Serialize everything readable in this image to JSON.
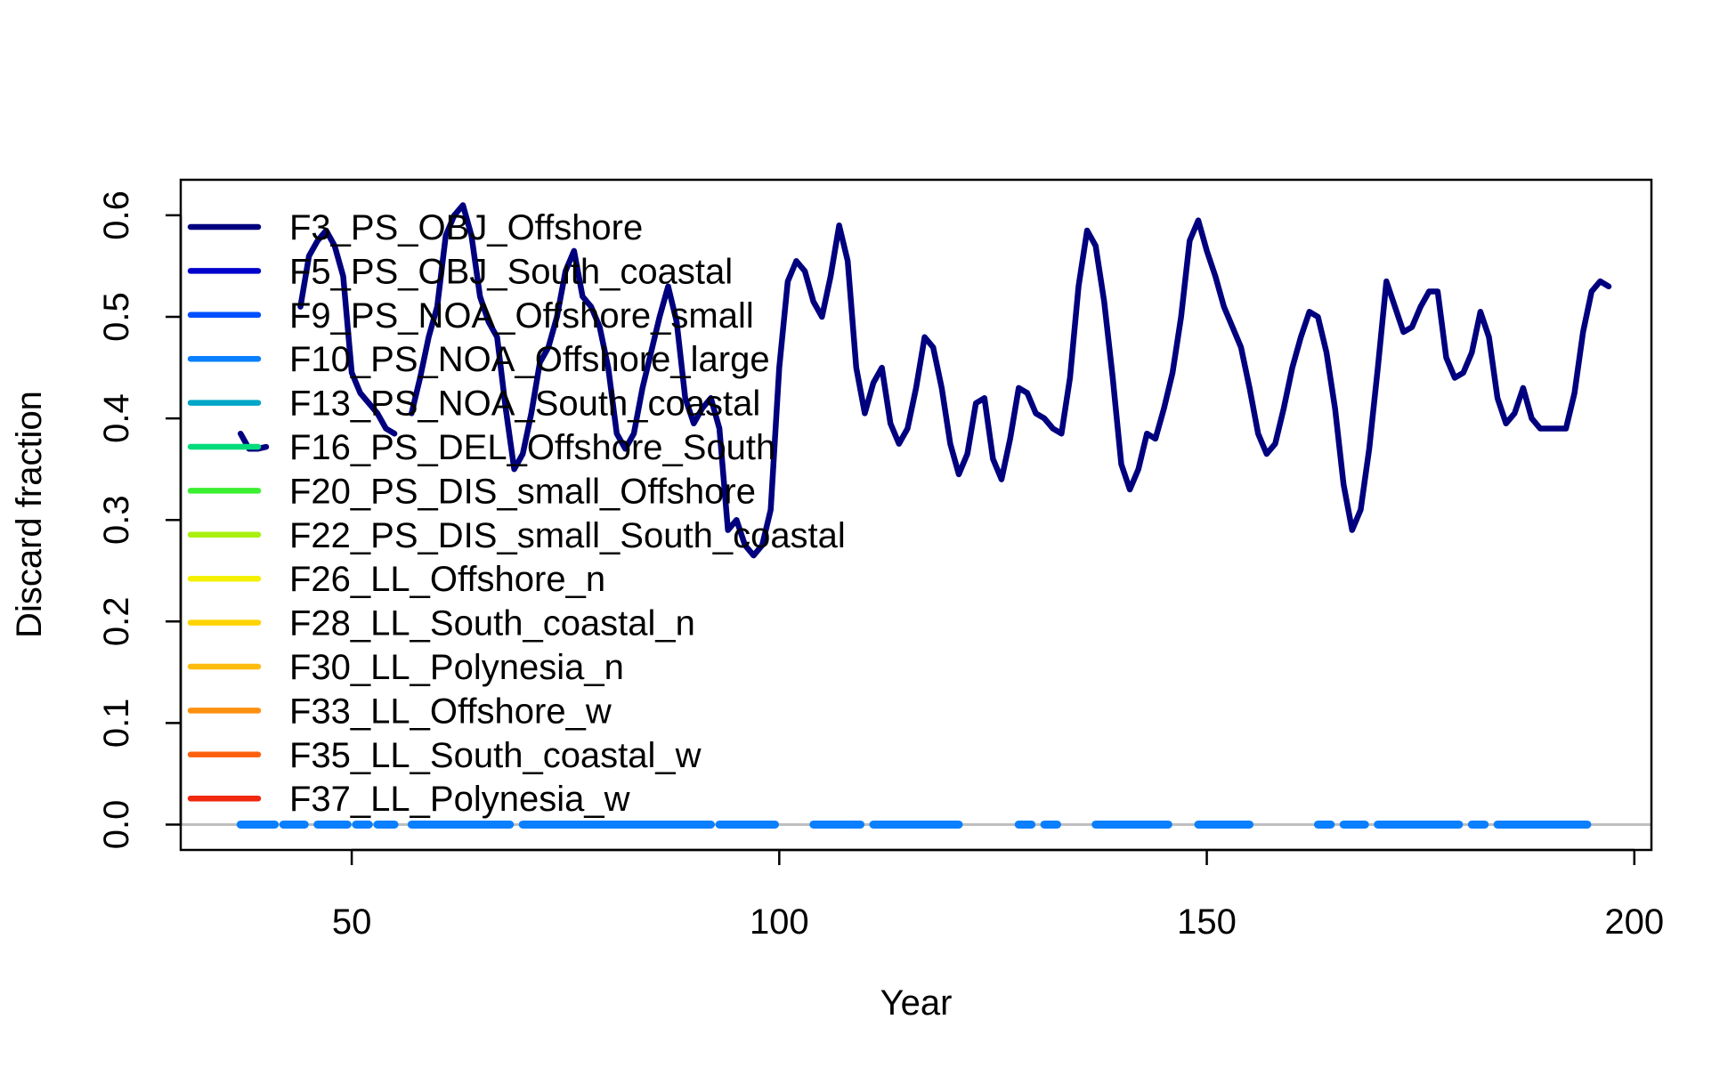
{
  "chart_data": {
    "type": "line",
    "title": "",
    "xlabel": "Year",
    "ylabel": "Discard fraction",
    "xlim": [
      30,
      202
    ],
    "ylim": [
      -0.025,
      0.635
    ],
    "x_ticks": [
      50,
      100,
      150,
      200
    ],
    "y_ticks": [
      0.0,
      0.1,
      0.2,
      0.3,
      0.4,
      0.5,
      0.6
    ],
    "x_tick_labels": [
      "50",
      "100",
      "150",
      "200"
    ],
    "y_tick_labels": [
      "0.0",
      "0.1",
      "0.2",
      "0.3",
      "0.4",
      "0.5",
      "0.6"
    ],
    "grid": false,
    "legend_position": "top-left",
    "reference_line": {
      "y": 0,
      "color": "#bebebe"
    },
    "series": [
      {
        "name": "F3_PS_OBJ_Offshore",
        "color": "#00007f",
        "style": "solid",
        "x": [
          37,
          38,
          39,
          40,
          44,
          45,
          46,
          47,
          48,
          49,
          50,
          51,
          52,
          53,
          54,
          55,
          57,
          58,
          59,
          60,
          61,
          62,
          63,
          64,
          65,
          66,
          67,
          68,
          69,
          70,
          71,
          72,
          73,
          74,
          75,
          76,
          77,
          78,
          79,
          80,
          81,
          82,
          83,
          84,
          85,
          86,
          87,
          88,
          89,
          90,
          91,
          92,
          93,
          94,
          95,
          96,
          97,
          98,
          99,
          100,
          101,
          102,
          103,
          104,
          105,
          106,
          107,
          108,
          109,
          110,
          111,
          112,
          113,
          114,
          115,
          116,
          117,
          118,
          119,
          120,
          121,
          122,
          123,
          124,
          125,
          126,
          127,
          128,
          129,
          130,
          131,
          132,
          133,
          134,
          135,
          136,
          137,
          138,
          139,
          140,
          141,
          142,
          143,
          144,
          145,
          146,
          147,
          148,
          149,
          150,
          151,
          152,
          153,
          154,
          155,
          156,
          157,
          158,
          159,
          160,
          161,
          162,
          163,
          164,
          165,
          166,
          167,
          168,
          169,
          170,
          171,
          172,
          173,
          174,
          175,
          176,
          177,
          178,
          179,
          180,
          181,
          182,
          183,
          184,
          185,
          186,
          187,
          188,
          189,
          190,
          191,
          192,
          193,
          194,
          195,
          196,
          197
        ],
        "y": [
          0.385,
          0.37,
          0.37,
          0.372,
          0.51,
          0.56,
          0.575,
          0.585,
          0.57,
          0.54,
          0.445,
          0.425,
          0.415,
          0.405,
          0.39,
          0.385,
          0.405,
          0.44,
          0.48,
          0.51,
          0.58,
          0.6,
          0.61,
          0.58,
          0.52,
          0.495,
          0.48,
          0.41,
          0.35,
          0.365,
          0.405,
          0.455,
          0.47,
          0.5,
          0.545,
          0.565,
          0.52,
          0.51,
          0.49,
          0.45,
          0.385,
          0.37,
          0.385,
          0.43,
          0.465,
          0.5,
          0.53,
          0.495,
          0.42,
          0.395,
          0.41,
          0.42,
          0.39,
          0.29,
          0.3,
          0.275,
          0.265,
          0.275,
          0.31,
          0.45,
          0.535,
          0.555,
          0.545,
          0.515,
          0.5,
          0.54,
          0.59,
          0.555,
          0.45,
          0.405,
          0.435,
          0.45,
          0.395,
          0.375,
          0.39,
          0.43,
          0.48,
          0.47,
          0.43,
          0.375,
          0.345,
          0.365,
          0.415,
          0.42,
          0.36,
          0.34,
          0.38,
          0.43,
          0.425,
          0.405,
          0.4,
          0.39,
          0.385,
          0.44,
          0.53,
          0.585,
          0.57,
          0.515,
          0.44,
          0.355,
          0.33,
          0.35,
          0.385,
          0.38,
          0.41,
          0.445,
          0.5,
          0.575,
          0.595,
          0.565,
          0.54,
          0.51,
          0.49,
          0.47,
          0.43,
          0.385,
          0.365,
          0.375,
          0.41,
          0.45,
          0.48,
          0.505,
          0.5,
          0.465,
          0.41,
          0.335,
          0.29,
          0.31,
          0.37,
          0.45,
          0.535,
          0.51,
          0.485,
          0.49,
          0.51,
          0.525,
          0.525,
          0.46,
          0.44,
          0.445,
          0.465,
          0.505,
          0.48,
          0.42,
          0.395,
          0.405,
          0.43,
          0.4,
          0.39,
          0.39,
          0.39,
          0.39,
          0.425,
          0.485,
          0.525,
          0.535,
          0.53
        ]
      },
      {
        "name": "F5_PS_OBJ_South_coastal",
        "color": "#0000cc",
        "style": "solid",
        "x": [],
        "y": []
      },
      {
        "name": "F9_PS_NOA_Offshore_small",
        "color": "#0050ff",
        "style": "solid",
        "x": [],
        "y": []
      },
      {
        "name": "F10_PS_NOA_Offshore_large",
        "color": "#0a7fff",
        "style": "dashed",
        "x": [
          37,
          201
        ],
        "y": [
          0,
          0
        ],
        "dash_segments": [
          [
            37,
            41
          ],
          [
            42,
            44.5
          ],
          [
            46,
            49.5
          ],
          [
            50.5,
            52
          ],
          [
            53,
            55
          ],
          [
            57,
            68.5
          ],
          [
            70,
            92
          ],
          [
            93,
            99.5
          ],
          [
            104,
            109.5
          ],
          [
            111,
            121
          ],
          [
            128,
            129.5
          ],
          [
            131,
            132.5
          ],
          [
            137,
            145.5
          ],
          [
            149,
            155
          ],
          [
            163,
            164.5
          ],
          [
            166,
            168.5
          ],
          [
            170,
            179.5
          ],
          [
            181,
            182.5
          ],
          [
            184,
            194.5
          ]
        ]
      },
      {
        "name": "F13_PS_NOA_South_coastal",
        "color": "#00a6c8",
        "style": "solid",
        "x": [],
        "y": []
      },
      {
        "name": "F16_PS_DEL_Offshore_South",
        "color": "#00dc7c",
        "style": "solid",
        "x": [],
        "y": []
      },
      {
        "name": "F20_PS_DIS_small_Offshore",
        "color": "#3bf032",
        "style": "solid",
        "x": [],
        "y": []
      },
      {
        "name": "F22_PS_DIS_small_South_coastal",
        "color": "#aaf00f",
        "style": "solid",
        "x": [],
        "y": []
      },
      {
        "name": "F26_LL_Offshore_n",
        "color": "#f5f000",
        "style": "solid",
        "x": [],
        "y": []
      },
      {
        "name": "F28_LL_South_coastal_n",
        "color": "#ffd400",
        "style": "solid",
        "x": [],
        "y": []
      },
      {
        "name": "F30_LL_Polynesia_n",
        "color": "#ffbc10",
        "style": "solid",
        "x": [],
        "y": []
      },
      {
        "name": "F33_LL_Offshore_w",
        "color": "#ff9010",
        "style": "solid",
        "x": [],
        "y": []
      },
      {
        "name": "F35_LL_South_coastal_w",
        "color": "#ff6010",
        "style": "solid",
        "x": [],
        "y": []
      },
      {
        "name": "F37_LL_Polynesia_w",
        "color": "#f02810",
        "style": "solid",
        "x": [],
        "y": []
      }
    ]
  }
}
